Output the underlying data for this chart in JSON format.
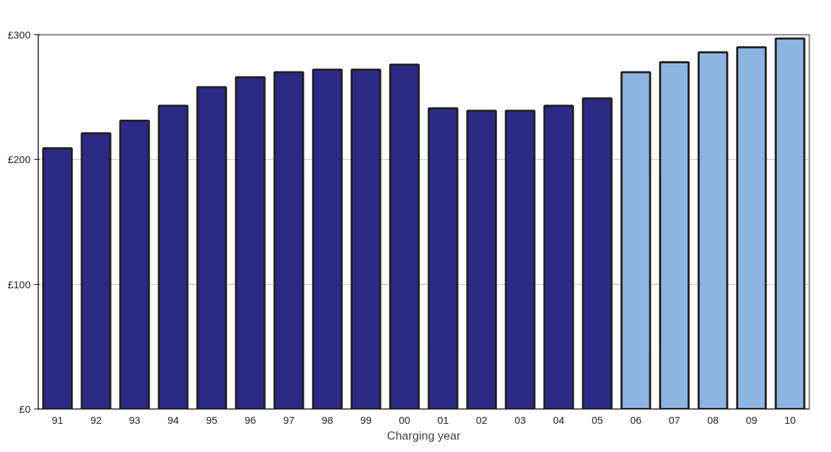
{
  "chart_data": {
    "type": "bar",
    "xlabel": "Charging year",
    "categories": [
      "91",
      "92",
      "93",
      "94",
      "95",
      "96",
      "97",
      "98",
      "99",
      "00",
      "01",
      "02",
      "03",
      "04",
      "05",
      "06",
      "07",
      "08",
      "09",
      "10"
    ],
    "values": [
      209,
      221,
      231,
      243,
      258,
      266,
      270,
      272,
      272,
      276,
      241,
      239,
      239,
      243,
      249,
      270,
      278,
      286,
      290,
      297
    ],
    "colors": [
      "#2b2a87",
      "#2b2a87",
      "#2b2a87",
      "#2b2a87",
      "#2b2a87",
      "#2b2a87",
      "#2b2a87",
      "#2b2a87",
      "#2b2a87",
      "#2b2a87",
      "#2b2a87",
      "#2b2a87",
      "#2b2a87",
      "#2b2a87",
      "#2b2a87",
      "#8db5e2",
      "#8db5e2",
      "#8db5e2",
      "#8db5e2",
      "#8db5e2"
    ],
    "ylim": [
      0,
      300
    ],
    "yticks": [
      {
        "value": 0,
        "label": "£0"
      },
      {
        "value": 100,
        "label": "£100"
      },
      {
        "value": 200,
        "label": "£200"
      },
      {
        "value": 300,
        "label": "£300"
      }
    ],
    "grid": "y"
  }
}
